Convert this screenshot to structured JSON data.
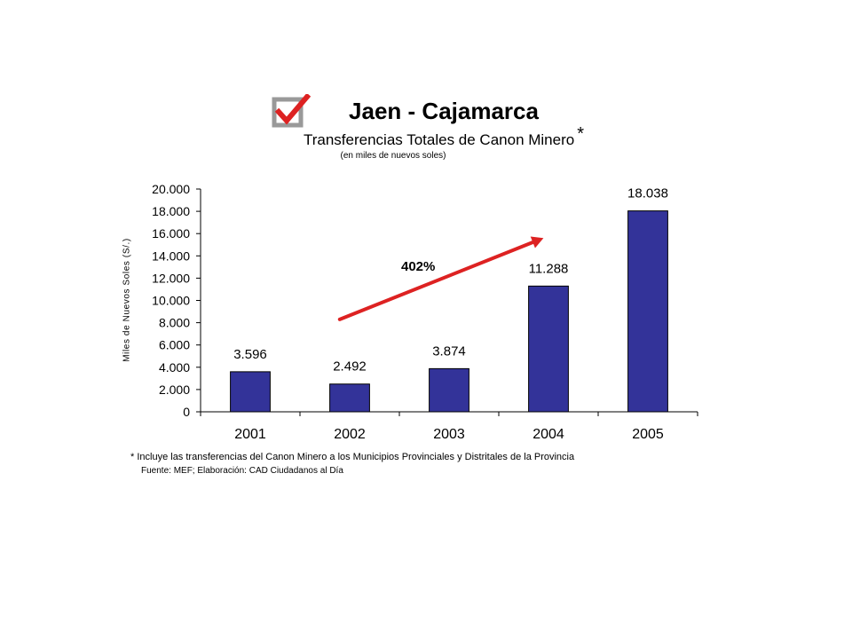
{
  "colors": {
    "bar": "#333399",
    "arrow": "#dd2222",
    "check": "#dd2222",
    "box": "#999999"
  },
  "logo": {
    "icon": "checkbox-checked-icon"
  },
  "chart_data": {
    "type": "bar",
    "title": "Jaen - Cajamarca",
    "subtitle": "Transferencias Totales de Canon Minero",
    "subtitle_mark": "*",
    "units": "(en miles de nuevos soles)",
    "xlabel": "",
    "ylabel": "Miles de Nuevos Soles (S/.)",
    "categories": [
      "2001",
      "2002",
      "2003",
      "2004",
      "2005"
    ],
    "values": [
      3596,
      2492,
      3874,
      11288,
      18038
    ],
    "value_labels": [
      "3.596",
      "2.492",
      "3.874",
      "11.288",
      "18.038"
    ],
    "ylim": [
      0,
      20000
    ],
    "yticks": [
      0,
      2000,
      4000,
      6000,
      8000,
      10000,
      12000,
      14000,
      16000,
      18000,
      20000
    ],
    "ytick_labels": [
      "0",
      "2.000",
      "4.000",
      "6.000",
      "8.000",
      "10.000",
      "12.000",
      "14.000",
      "16.000",
      "18.000",
      "20.000"
    ],
    "grid": false,
    "legend": "none",
    "annotation": {
      "text": "402%",
      "arrow": "increase from 2002 to 2004"
    }
  },
  "notes": {
    "footnote": "* Incluye las transferencias del Canon Minero a los Municipios Provinciales y Distritales de la Provincia",
    "source": "Fuente: MEF; Elaboración: CAD Ciudadanos al Día"
  }
}
